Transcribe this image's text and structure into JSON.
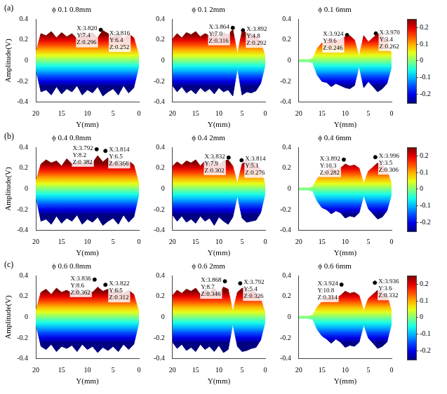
{
  "chart_data": [
    {
      "type": "line",
      "title": "ϕ 0.1 0.8mm",
      "panel_letter": "(a)",
      "xlabel": "Y(mm)",
      "ylabel": "Amplitude(V)",
      "x": [
        0,
        1,
        2,
        3,
        4,
        5,
        6,
        7,
        8,
        9,
        10,
        11,
        12,
        13,
        14,
        15,
        16,
        17,
        18,
        19,
        20
      ],
      "series": [
        {
          "values": [
            0.05,
            0.22,
            0.26,
            0.21,
            0.27,
            0.23,
            0.26,
            0.29,
            0.22,
            0.27,
            0.24,
            0.28,
            0.21,
            0.26,
            0.23,
            0.27,
            0.22,
            0.28,
            0.24,
            0.26,
            0.08
          ]
        },
        {
          "values": [
            -0.05,
            -0.26,
            -0.31,
            -0.24,
            -0.33,
            -0.27,
            -0.3,
            -0.34,
            -0.25,
            -0.31,
            -0.28,
            -0.33,
            -0.24,
            -0.3,
            -0.27,
            -0.32,
            -0.25,
            -0.33,
            -0.28,
            -0.3,
            -0.08
          ]
        }
      ],
      "data_tips": [
        {
          "y": 7.4,
          "z": 0.296,
          "text": [
            "X:3.820",
            "Y:7.4",
            "Z:0.296"
          ]
        },
        {
          "y": 6.4,
          "z": 0.252,
          "text": [
            "X:3.816",
            "Y:6.4",
            "Z:0.252"
          ]
        }
      ],
      "xlim": [
        20,
        0
      ],
      "xticks": [
        20,
        15,
        10,
        5,
        0
      ],
      "ylim": [
        -0.4,
        0.4
      ],
      "yticks": [
        -0.4,
        -0.2,
        0,
        0.2,
        0.4
      ],
      "grid": false
    },
    {
      "type": "line",
      "title": "ϕ 0.1 2mm",
      "xlabel": "Y(mm)",
      "x": [
        0,
        1,
        2,
        3,
        4,
        5,
        6,
        7,
        8,
        9,
        10,
        11,
        12,
        13,
        14,
        15,
        16,
        17,
        18,
        19,
        20
      ],
      "series": [
        {
          "values": [
            0.04,
            0.18,
            0.24,
            0.26,
            0.27,
            0.28,
            0.06,
            0.3,
            0.25,
            0.27,
            0.22,
            0.28,
            0.24,
            0.26,
            0.23,
            0.28,
            0.25,
            0.27,
            0.22,
            0.26,
            0.21
          ]
        },
        {
          "values": [
            -0.04,
            -0.22,
            -0.29,
            -0.31,
            -0.3,
            -0.33,
            -0.07,
            -0.34,
            -0.28,
            -0.3,
            -0.26,
            -0.32,
            -0.27,
            -0.3,
            -0.26,
            -0.32,
            -0.28,
            -0.31,
            -0.25,
            -0.3,
            -0.24
          ]
        }
      ],
      "data_tips": [
        {
          "y": 7.0,
          "z": 0.316,
          "text": [
            "X:3.864",
            "Y:7.0",
            "Z:0.316"
          ]
        },
        {
          "y": 4.8,
          "z": 0.292,
          "text": [
            "X:3.892",
            "Y:4.8",
            "Z:0.292"
          ]
        }
      ],
      "xlim": [
        20,
        0
      ],
      "xticks": [
        20,
        15,
        10,
        5,
        0
      ],
      "ylim": [
        -0.4,
        0.4
      ],
      "yticks": [
        -0.4,
        -0.2,
        0,
        0.2,
        0.4
      ],
      "grid": false
    },
    {
      "type": "line",
      "title": "ϕ 0.1 6mm",
      "xlabel": "Y(mm)",
      "x": [
        0,
        1,
        2,
        3,
        4,
        5,
        6,
        7,
        8,
        9,
        10,
        11,
        12,
        13,
        14,
        15,
        16,
        17,
        18,
        19,
        20
      ],
      "series": [
        {
          "values": [
            0.06,
            0.2,
            0.24,
            0.26,
            0.22,
            0.18,
            0.24,
            0.04,
            0.2,
            0.24,
            0.23,
            0.21,
            0.19,
            0.22,
            0.18,
            0.17,
            0.12,
            0.02,
            0.01,
            0.01,
            0.01
          ]
        },
        {
          "values": [
            -0.06,
            -0.22,
            -0.27,
            -0.3,
            -0.25,
            -0.2,
            -0.26,
            -0.05,
            -0.24,
            -0.27,
            -0.26,
            -0.24,
            -0.22,
            -0.25,
            -0.21,
            -0.2,
            -0.14,
            -0.02,
            -0.01,
            -0.01,
            -0.01
          ]
        }
      ],
      "data_tips": [
        {
          "y": 9.6,
          "z": 0.246,
          "text": [
            "X:3.924",
            "Y:9.6",
            "Z:0.246"
          ]
        },
        {
          "y": 3.4,
          "z": 0.262,
          "text": [
            "X:3.970",
            "Y:3.4",
            "Z:0.262"
          ]
        }
      ],
      "xlim": [
        20,
        0
      ],
      "xticks": [
        20,
        15,
        10,
        5,
        0
      ],
      "ylim": [
        -0.4,
        0.4
      ],
      "yticks": [
        -0.4,
        -0.2,
        0,
        0.2,
        0.4
      ],
      "grid": false,
      "colorbar": {
        "lim": [
          -0.25,
          0.25
        ],
        "ticks": [
          -0.2,
          -0.1,
          0,
          0.1,
          0.2
        ]
      }
    },
    {
      "type": "line",
      "title": "ϕ 0.4 0.8mm",
      "panel_letter": "(b)",
      "xlabel": "Y(mm)",
      "ylabel": "Amplitude(V)",
      "x": [
        0,
        1,
        2,
        3,
        4,
        5,
        6,
        7,
        8,
        9,
        10,
        11,
        12,
        13,
        14,
        15,
        16,
        17,
        18,
        19,
        20
      ],
      "series": [
        {
          "values": [
            0.05,
            0.23,
            0.27,
            0.22,
            0.28,
            0.24,
            0.3,
            0.26,
            0.32,
            0.25,
            0.28,
            0.23,
            0.27,
            0.24,
            0.29,
            0.22,
            0.27,
            0.25,
            0.28,
            0.24,
            0.07
          ]
        },
        {
          "values": [
            -0.05,
            -0.27,
            -0.32,
            -0.25,
            -0.34,
            -0.28,
            -0.31,
            -0.35,
            -0.27,
            -0.32,
            -0.29,
            -0.34,
            -0.25,
            -0.31,
            -0.28,
            -0.33,
            -0.26,
            -0.34,
            -0.29,
            -0.31,
            -0.07
          ]
        }
      ],
      "data_tips": [
        {
          "y": 8.2,
          "z": 0.382,
          "text": [
            "X:3.792",
            "Y:8.2",
            "Z:0.382"
          ]
        },
        {
          "y": 6.5,
          "z": 0.366,
          "text": [
            "X:3.814",
            "Y:6.5",
            "Z:0.366"
          ]
        }
      ],
      "xlim": [
        20,
        0
      ],
      "xticks": [
        20,
        15,
        10,
        5,
        0
      ],
      "ylim": [
        -0.4,
        0.4
      ],
      "yticks": [
        -0.4,
        -0.2,
        0,
        0.2,
        0.4
      ],
      "grid": false
    },
    {
      "type": "line",
      "title": "ϕ 0.4 2mm",
      "xlabel": "Y(mm)",
      "x": [
        0,
        1,
        2,
        3,
        4,
        5,
        6,
        7,
        8,
        9,
        10,
        11,
        12,
        13,
        14,
        15,
        16,
        17,
        18,
        19,
        20
      ],
      "series": [
        {
          "values": [
            0.04,
            0.19,
            0.25,
            0.26,
            0.27,
            0.24,
            0.05,
            0.22,
            0.28,
            0.27,
            0.23,
            0.29,
            0.24,
            0.27,
            0.22,
            0.28,
            0.25,
            0.27,
            0.23,
            0.26,
            0.22
          ]
        },
        {
          "values": [
            -0.04,
            -0.23,
            -0.3,
            -0.31,
            -0.32,
            -0.28,
            -0.06,
            -0.27,
            -0.34,
            -0.31,
            -0.27,
            -0.35,
            -0.28,
            -0.31,
            -0.26,
            -0.33,
            -0.29,
            -0.32,
            -0.26,
            -0.31,
            -0.25
          ]
        }
      ],
      "data_tips": [
        {
          "y": 7.9,
          "z": 0.302,
          "text": [
            "X:3.832",
            "Y:7.9",
            "Z:0.302"
          ]
        },
        {
          "y": 5.1,
          "z": 0.276,
          "text": [
            "X:3.814",
            "Y:5.1",
            "Z:0.276"
          ]
        }
      ],
      "xlim": [
        20,
        0
      ],
      "xticks": [
        20,
        15,
        10,
        5,
        0
      ],
      "ylim": [
        -0.4,
        0.4
      ],
      "yticks": [
        -0.4,
        -0.2,
        0,
        0.2,
        0.4
      ],
      "grid": false
    },
    {
      "type": "line",
      "title": "ϕ 0.4 6mm",
      "xlabel": "Y(mm)",
      "x": [
        0,
        1,
        2,
        3,
        4,
        5,
        6,
        7,
        8,
        9,
        10,
        11,
        12,
        13,
        14,
        15,
        16,
        17,
        18,
        19,
        20
      ],
      "series": [
        {
          "values": [
            0.05,
            0.18,
            0.23,
            0.25,
            0.21,
            0.17,
            0.05,
            0.2,
            0.23,
            0.22,
            0.24,
            0.2,
            0.18,
            0.21,
            0.17,
            0.15,
            0.1,
            0.02,
            0.01,
            0.01,
            0.01
          ]
        },
        {
          "values": [
            -0.05,
            -0.21,
            -0.27,
            -0.29,
            -0.24,
            -0.19,
            -0.06,
            -0.23,
            -0.27,
            -0.26,
            -0.28,
            -0.23,
            -0.21,
            -0.24,
            -0.2,
            -0.18,
            -0.12,
            -0.02,
            -0.01,
            -0.01,
            -0.01
          ]
        }
      ],
      "data_tips": [
        {
          "y": 10.3,
          "z": 0.282,
          "text": [
            "X:3.892",
            "Y:10.3",
            "Z:0.282"
          ]
        },
        {
          "y": 3.5,
          "z": 0.306,
          "text": [
            "X:3.996",
            "Y:3.5",
            "Z:0.306"
          ]
        }
      ],
      "xlim": [
        20,
        0
      ],
      "xticks": [
        20,
        15,
        10,
        5,
        0
      ],
      "ylim": [
        -0.4,
        0.4
      ],
      "yticks": [
        -0.4,
        -0.2,
        0,
        0.2,
        0.4
      ],
      "grid": false,
      "colorbar": {
        "lim": [
          -0.25,
          0.25
        ],
        "ticks": [
          -0.2,
          -0.1,
          0,
          0.1,
          0.2
        ]
      }
    },
    {
      "type": "line",
      "title": "ϕ 0.6 0.8mm",
      "panel_letter": "(c)",
      "xlabel": "Y(mm)",
      "ylabel": "Amplitude(V)",
      "x": [
        0,
        1,
        2,
        3,
        4,
        5,
        6,
        7,
        8,
        9,
        10,
        11,
        12,
        13,
        14,
        15,
        16,
        17,
        18,
        19,
        20
      ],
      "series": [
        {
          "values": [
            0.05,
            0.22,
            0.26,
            0.23,
            0.28,
            0.24,
            0.27,
            0.25,
            0.29,
            0.24,
            0.27,
            0.22,
            0.28,
            0.23,
            0.26,
            0.24,
            0.28,
            0.22,
            0.27,
            0.24,
            0.06
          ]
        },
        {
          "values": [
            -0.05,
            -0.26,
            -0.31,
            -0.26,
            -0.33,
            -0.28,
            -0.32,
            -0.29,
            -0.34,
            -0.28,
            -0.31,
            -0.26,
            -0.33,
            -0.27,
            -0.3,
            -0.28,
            -0.33,
            -0.26,
            -0.31,
            -0.28,
            -0.06
          ]
        }
      ],
      "data_tips": [
        {
          "y": 8.6,
          "z": 0.362,
          "text": [
            "X:3.836",
            "Y:8.6",
            "Z:0.362"
          ]
        },
        {
          "y": 6.5,
          "z": 0.312,
          "text": [
            "X:3.822",
            "Y:6.5",
            "Z:0.312"
          ]
        }
      ],
      "xlim": [
        20,
        0
      ],
      "xticks": [
        20,
        15,
        10,
        5,
        0
      ],
      "ylim": [
        -0.4,
        0.4
      ],
      "yticks": [
        -0.4,
        -0.2,
        0,
        0.2,
        0.4
      ],
      "grid": false
    },
    {
      "type": "line",
      "title": "ϕ 0.6 2mm",
      "xlabel": "Y(mm)",
      "x": [
        0,
        1,
        2,
        3,
        4,
        5,
        6,
        7,
        8,
        9,
        10,
        11,
        12,
        13,
        14,
        15,
        16,
        17,
        18,
        19,
        20
      ],
      "series": [
        {
          "values": [
            0.04,
            0.18,
            0.24,
            0.25,
            0.27,
            0.28,
            0.24,
            0.05,
            0.27,
            0.29,
            0.23,
            0.28,
            0.24,
            0.27,
            0.22,
            0.28,
            0.25,
            0.27,
            0.23,
            0.26,
            0.21
          ]
        },
        {
          "values": [
            -0.04,
            -0.22,
            -0.29,
            -0.3,
            -0.32,
            -0.33,
            -0.28,
            -0.06,
            -0.31,
            -0.34,
            -0.27,
            -0.33,
            -0.28,
            -0.31,
            -0.26,
            -0.33,
            -0.29,
            -0.32,
            -0.26,
            -0.3,
            -0.24
          ]
        }
      ],
      "data_tips": [
        {
          "y": 8.7,
          "z": 0.346,
          "text": [
            "X:3.868",
            "Y:8.7",
            "Z:0.346"
          ]
        },
        {
          "y": 5.4,
          "z": 0.326,
          "text": [
            "X:3.792",
            "Y:5.4",
            "Z:0.326"
          ]
        }
      ],
      "xlim": [
        20,
        0
      ],
      "xticks": [
        20,
        15,
        10,
        5,
        0
      ],
      "ylim": [
        -0.4,
        0.4
      ],
      "yticks": [
        -0.4,
        -0.2,
        0,
        0.2,
        0.4
      ],
      "grid": false
    },
    {
      "type": "line",
      "title": "ϕ 0.6 6mm",
      "xlabel": "Y(mm)",
      "x": [
        0,
        1,
        2,
        3,
        4,
        5,
        6,
        7,
        8,
        9,
        10,
        11,
        12,
        13,
        14,
        15,
        16,
        17,
        18,
        19,
        20
      ],
      "series": [
        {
          "values": [
            0.06,
            0.21,
            0.25,
            0.26,
            0.22,
            0.18,
            0.06,
            0.21,
            0.24,
            0.23,
            0.25,
            0.21,
            0.18,
            0.22,
            0.18,
            0.15,
            0.1,
            0.02,
            0.01,
            0.01,
            0.01
          ]
        },
        {
          "values": [
            -0.06,
            -0.24,
            -0.28,
            -0.3,
            -0.25,
            -0.2,
            -0.07,
            -0.24,
            -0.28,
            -0.27,
            -0.29,
            -0.24,
            -0.21,
            -0.25,
            -0.21,
            -0.18,
            -0.12,
            -0.02,
            -0.01,
            -0.01,
            -0.01
          ]
        }
      ],
      "data_tips": [
        {
          "y": 10.8,
          "z": 0.314,
          "text": [
            "X:3.924",
            "Y:10.8",
            "Z:0.314"
          ]
        },
        {
          "y": 3.6,
          "z": 0.332,
          "text": [
            "X:3.936",
            "Y:3.6",
            "Z:0.332"
          ]
        }
      ],
      "xlim": [
        20,
        0
      ],
      "xticks": [
        20,
        15,
        10,
        5,
        0
      ],
      "ylim": [
        -0.4,
        0.4
      ],
      "yticks": [
        -0.4,
        -0.2,
        0,
        0.2,
        0.4
      ],
      "grid": false,
      "colorbar": {
        "lim": [
          -0.25,
          0.25
        ],
        "ticks": [
          -0.2,
          -0.1,
          0,
          0.1,
          0.2
        ]
      }
    }
  ]
}
